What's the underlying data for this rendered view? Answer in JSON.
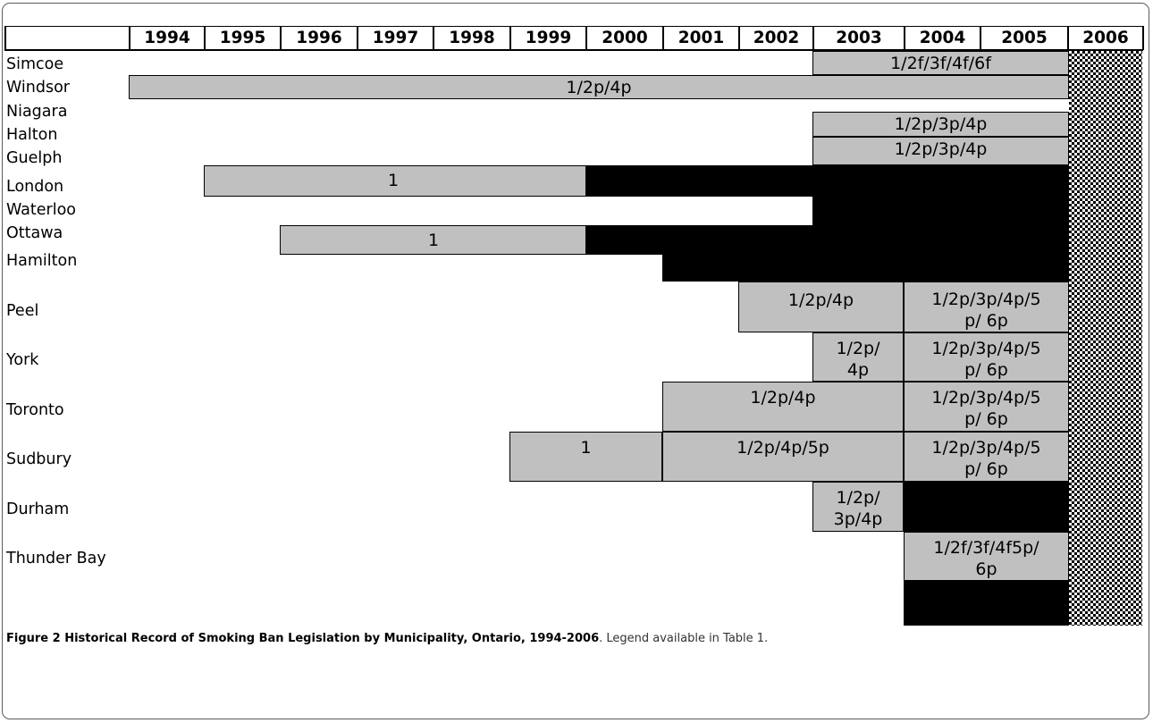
{
  "years": [
    "1994",
    "1995",
    "1996",
    "1997",
    "1998",
    "1999",
    "2000",
    "2001",
    "2002",
    "2003",
    "2004",
    "2005",
    "2006"
  ],
  "municipalities": [
    "Simcoe",
    "Windsor",
    "Niagara",
    "Halton",
    "Guelph",
    "London",
    "Waterloo",
    "Ottawa",
    "Hamilton",
    "Peel",
    "York",
    "Toronto",
    "Sudbury",
    "Durham",
    "Thunder Bay"
  ],
  "bar_labels": {
    "simcoe": "1/2f/3f/4f/6f",
    "windsor": "1/2p/4p",
    "niagara": "1/2p/3p/4p",
    "halton": "1/2p/3p/4p",
    "guelph": "1",
    "waterloo": "1",
    "hamilton_a": "1/2p/4p",
    "hamilton_b_1": "1/2p/3p/4p/5",
    "hamilton_b_2": "p/ 6p",
    "peel_a_1": "1/2p/",
    "peel_a_2": "4p",
    "peel_b_1": "1/2p/3p/4p/5",
    "peel_b_2": "p/ 6p",
    "york_a": "1/2p/4p",
    "york_b_1": "1/2p/3p/4p/5",
    "york_b_2": "p/ 6p",
    "toronto_a": "1",
    "toronto_b": "1/2p/4p/5p",
    "toronto_c_1": "1/2p/3p/4p/5",
    "toronto_c_2": "p/ 6p",
    "sudbury_a_1": "1/2p/",
    "sudbury_a_2": "3p/4p",
    "durham_1": "1/2f/3f/4f5p/",
    "durham_2": "6p"
  },
  "colors": {
    "grey": "#c0c0c0",
    "black": "#000000",
    "pattern": "checkerboard"
  },
  "caption": {
    "bold": "Figure 2 Historical Record of Smoking Ban Legislation by Municipality, Ontario, 1994-2006",
    "rest": ". Legend available in Table 1."
  }
}
